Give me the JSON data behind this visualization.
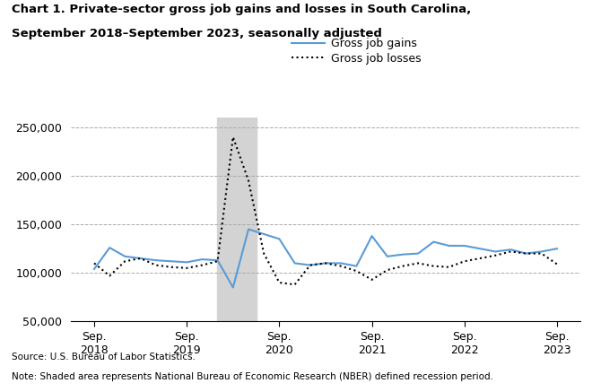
{
  "title_line1": "Chart 1. Private-sector gross job gains and losses in South Carolina,",
  "title_line2": "September 2018–September 2023, seasonally adjusted",
  "source": "Source: U.S. Bureau of Labor Statistics.",
  "note": "Note: Shaded area represents National Bureau of Economic Research (NBER) defined recession period.",
  "legend_gains": "Gross job gains",
  "legend_losses": "Gross job losses",
  "recession_start": 2020.08,
  "recession_end": 2020.5,
  "ylim": [
    50000,
    260000
  ],
  "yticks": [
    50000,
    100000,
    150000,
    200000,
    250000
  ],
  "gains_color": "#5B9BD5",
  "losses_color": "#000000",
  "recession_color": "#D3D3D3",
  "gains_x": [
    2018.75,
    2018.917,
    2019.083,
    2019.25,
    2019.417,
    2019.583,
    2019.75,
    2019.917,
    2020.083,
    2020.25,
    2020.417,
    2020.583,
    2020.75,
    2020.917,
    2021.083,
    2021.25,
    2021.417,
    2021.583,
    2021.75,
    2021.917,
    2022.083,
    2022.25,
    2022.417,
    2022.583,
    2022.75,
    2022.917,
    2023.083,
    2023.25,
    2023.417,
    2023.583,
    2023.75
  ],
  "gains_y": [
    104000,
    126000,
    117000,
    115000,
    113000,
    112000,
    111000,
    114000,
    113000,
    85000,
    145000,
    140000,
    135000,
    110000,
    108000,
    110000,
    110000,
    107000,
    138000,
    117000,
    119000,
    120000,
    132000,
    128000,
    128000,
    125000,
    122000,
    124000,
    120000,
    122000,
    125000
  ],
  "losses_x": [
    2018.75,
    2018.917,
    2019.083,
    2019.25,
    2019.417,
    2019.583,
    2019.75,
    2019.917,
    2020.083,
    2020.25,
    2020.417,
    2020.583,
    2020.75,
    2020.917,
    2021.083,
    2021.25,
    2021.417,
    2021.583,
    2021.75,
    2021.917,
    2022.083,
    2022.25,
    2022.417,
    2022.583,
    2022.75,
    2022.917,
    2023.083,
    2023.25,
    2023.417,
    2023.583,
    2023.75
  ],
  "losses_y": [
    110000,
    97000,
    112000,
    115000,
    108000,
    106000,
    105000,
    108000,
    112000,
    240000,
    195000,
    120000,
    90000,
    88000,
    108000,
    110000,
    107000,
    102000,
    93000,
    103000,
    107000,
    110000,
    107000,
    106000,
    112000,
    115000,
    118000,
    122000,
    120000,
    120000,
    109000
  ],
  "xticks": [
    2018.75,
    2019.75,
    2020.75,
    2021.75,
    2022.75,
    2023.75
  ],
  "xtick_labels": [
    "Sep.\n2018",
    "Sep.\n2019",
    "Sep.\n2020",
    "Sep.\n2021",
    "Sep.\n2022",
    "Sep.\n2023"
  ],
  "xlim": [
    2018.5,
    2024.0
  ]
}
